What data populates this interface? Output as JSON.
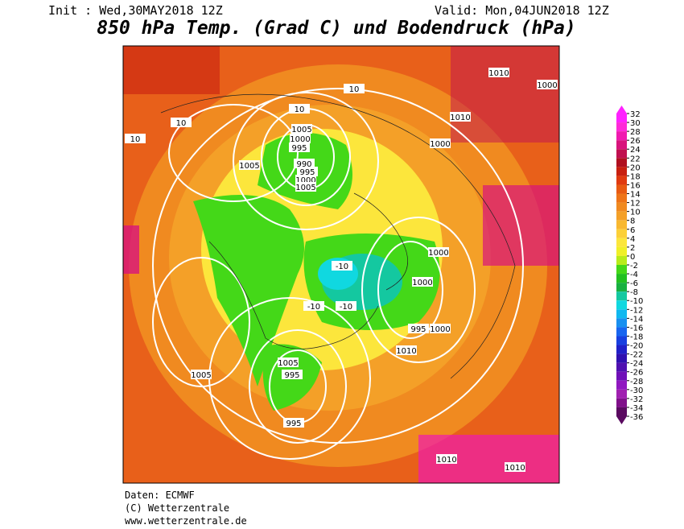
{
  "header": {
    "init": "Init : Wed,30MAY2018 12Z",
    "valid": "Valid: Mon,04JUN2018 12Z",
    "title": "850 hPa Temp. (Grad C) und Bodendruck (hPa)"
  },
  "map": {
    "isobar_labels": [
      "10",
      "10",
      "1005",
      "1000",
      "995",
      "990",
      "995",
      "1000",
      "1005",
      "1005",
      "1010",
      "1000",
      "1010",
      "1000",
      "1000",
      "1000",
      "995",
      "1000",
      "1005",
      "995",
      "995",
      "1005",
      "1010",
      "1010",
      "1010",
      "10",
      "10",
      "-10",
      "-10",
      "-10"
    ]
  },
  "colorbar": {
    "ticks": [
      32,
      30,
      28,
      26,
      24,
      22,
      20,
      18,
      16,
      14,
      12,
      10,
      8,
      6,
      4,
      2,
      0,
      -2,
      -4,
      -6,
      -8,
      -10,
      -12,
      -14,
      -16,
      -18,
      -20,
      -22,
      -24,
      -26,
      -28,
      -30,
      -32,
      -34,
      -36
    ],
    "colors": [
      "#ff22ff",
      "#ff2ad8",
      "#f01ab0",
      "#d8147c",
      "#c01050",
      "#b01020",
      "#c82010",
      "#e03a10",
      "#e85a12",
      "#ee7418",
      "#f08a20",
      "#f4a028",
      "#f8b830",
      "#fcd038",
      "#fce63c",
      "#f0f028",
      "#b8ec1a",
      "#44d818",
      "#22c020",
      "#18b040",
      "#14c8a0",
      "#10d8e0",
      "#10b8f0",
      "#1890f0",
      "#1866f0",
      "#1840e0",
      "#2020c8",
      "#3010b0",
      "#5010b0",
      "#7010b8",
      "#9018c0",
      "#a020b0",
      "#80108a",
      "#5a0a60"
    ]
  },
  "footer": {
    "source": "Daten: ECMWF",
    "copyright": "(C) Wetterzentrale",
    "url": "www.wetterzentrale.de"
  }
}
